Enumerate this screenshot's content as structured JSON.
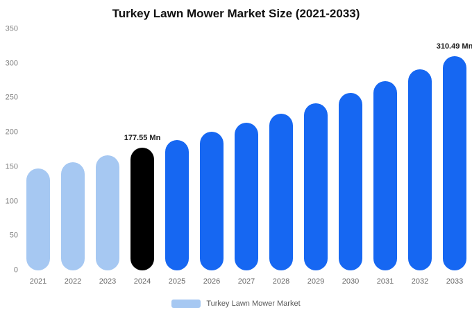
{
  "title": "Turkey Lawn Mower Market Size (2021-2033)",
  "legend": {
    "label": "Turkey Lawn Mower Market"
  },
  "colors": {
    "historical_bar": "#a6c8f2",
    "base_year_bar": "#000000",
    "forecast_bar": "#1667f2",
    "axis_text": "#808080",
    "x_axis_text": "#666666",
    "legend_text": "#595959",
    "annotation_text": "#1a1a1a"
  },
  "chart_data": {
    "type": "bar",
    "title": "Turkey Lawn Mower Market Size (2021-2033)",
    "categories": [
      "2021",
      "2022",
      "2023",
      "2024",
      "2025",
      "2026",
      "2027",
      "2028",
      "2029",
      "2030",
      "2031",
      "2032",
      "2033"
    ],
    "values": [
      147.37,
      156.81,
      166.86,
      177.55,
      188.93,
      201.03,
      213.91,
      227.62,
      242.2,
      257.72,
      274.23,
      291.8,
      310.49
    ],
    "unit": "Mn",
    "bar_colors": [
      "#a6c8f2",
      "#a6c8f2",
      "#a6c8f2",
      "#000000",
      "#1667f2",
      "#1667f2",
      "#1667f2",
      "#1667f2",
      "#1667f2",
      "#1667f2",
      "#1667f2",
      "#1667f2",
      "#1667f2"
    ],
    "annotations": [
      {
        "category": "2024",
        "text": "177.55 Mn"
      },
      {
        "category": "2033",
        "text": "310.49 Mn"
      }
    ],
    "ylim": [
      0,
      350
    ],
    "yticks": [
      0,
      50,
      100,
      150,
      200,
      250,
      300,
      350
    ],
    "grid": false,
    "legend_position": "bottom"
  }
}
